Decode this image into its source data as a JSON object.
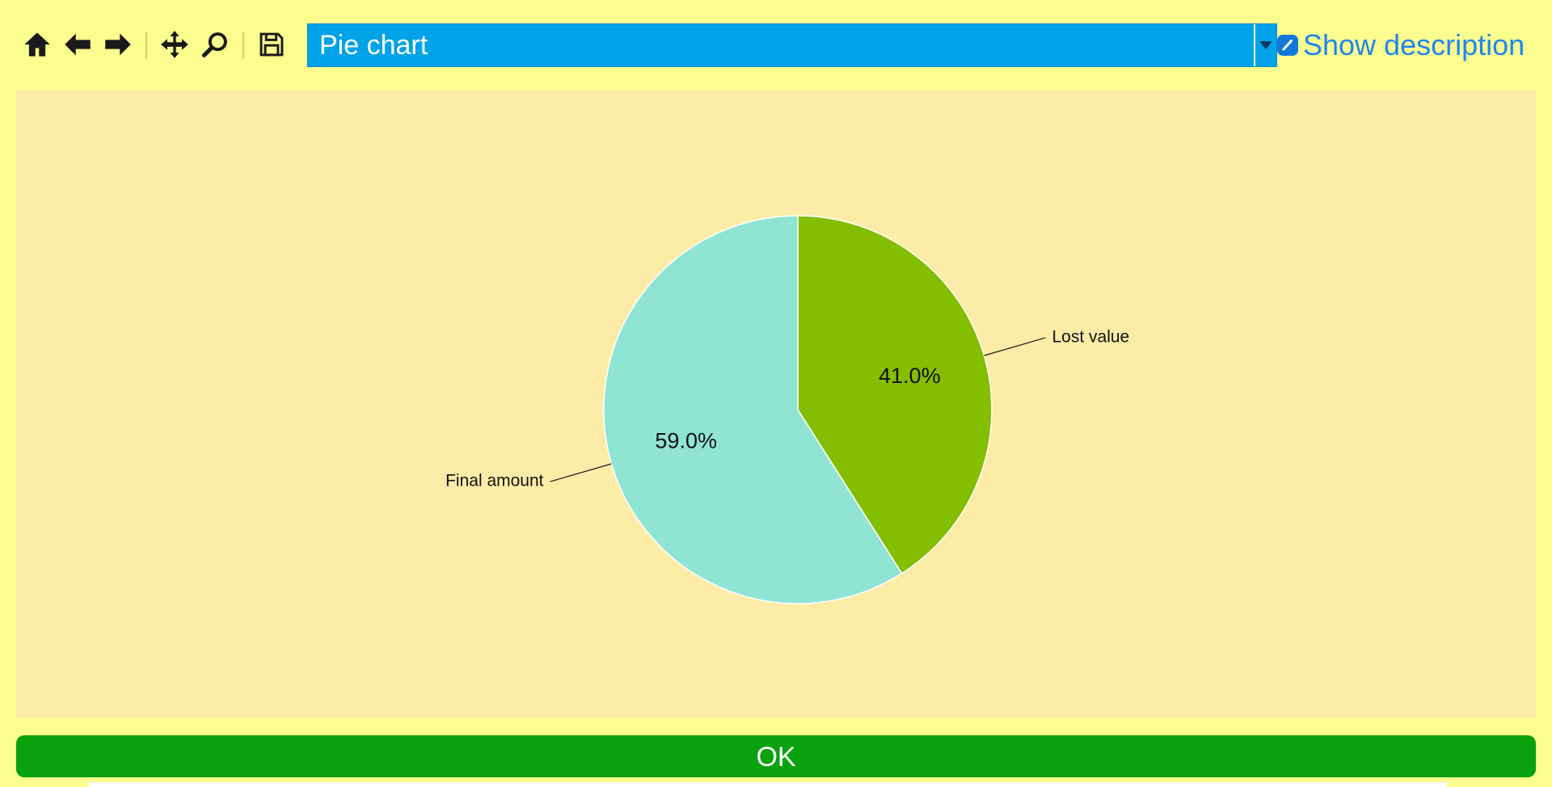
{
  "toolbar": {
    "buttons": [
      {
        "name": "home",
        "icon": "home-icon"
      },
      {
        "name": "back",
        "icon": "arrow-left-icon"
      },
      {
        "name": "forward",
        "icon": "arrow-right-icon"
      },
      {
        "name": "pan",
        "icon": "move-icon"
      },
      {
        "name": "zoom",
        "icon": "magnifier-icon"
      },
      {
        "name": "save",
        "icon": "save-icon"
      }
    ]
  },
  "chart_selector": {
    "value": "Pie chart"
  },
  "description_toggle": {
    "label": "Show description"
  },
  "ok_button": {
    "label": "OK"
  },
  "chart_data": {
    "type": "pie",
    "title": "",
    "labels": [
      "Lost value",
      "Final amount"
    ],
    "values": [
      41.0,
      59.0
    ],
    "percent_labels": [
      "41.0%",
      "59.0%"
    ],
    "colors": [
      "#83be00",
      "#90e4d4"
    ],
    "start_angle": "top",
    "direction": "clockwise",
    "background": "#fdeca7",
    "legend": "none"
  },
  "colors": {
    "page_bg": "#fbfd8e",
    "chart_bg": "#fdeca7",
    "combo_blue": "#00a2e8",
    "link_blue": "#1e86f0",
    "ok_green": "#0aa10e"
  }
}
